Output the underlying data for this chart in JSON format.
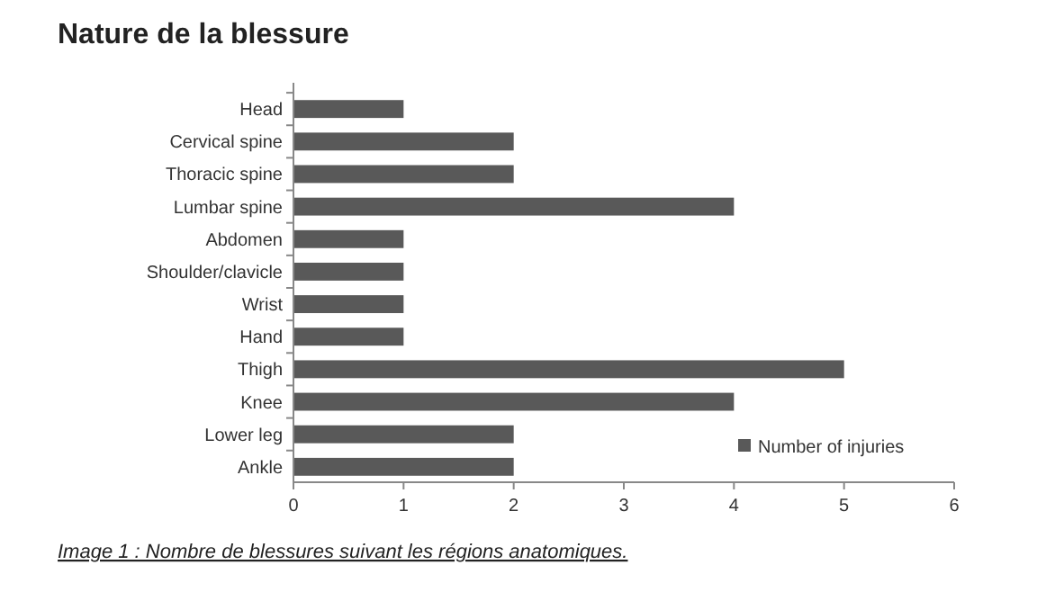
{
  "chart_data": {
    "type": "bar",
    "orientation": "horizontal",
    "title": "Nature de la blessure",
    "categories": [
      "Head",
      "Cervical spine",
      "Thoracic spine",
      "Lumbar spine",
      "Abdomen",
      "Shoulder/clavicle",
      "Wrist",
      "Hand",
      "Thigh",
      "Knee",
      "Lower leg",
      "Ankle"
    ],
    "series": [
      {
        "name": "Number of injuries",
        "color": "#595959",
        "values": [
          1,
          2,
          2,
          4,
          1,
          1,
          1,
          1,
          5,
          4,
          2,
          2
        ]
      }
    ],
    "xlim": [
      0,
      6
    ],
    "xticks": [
      0,
      1,
      2,
      3,
      4,
      5,
      6
    ],
    "grid": false,
    "legend": "bottom right",
    "annotations": [
      "Image 1 : Nombre de blessures suivant les régions anatomiques."
    ]
  }
}
